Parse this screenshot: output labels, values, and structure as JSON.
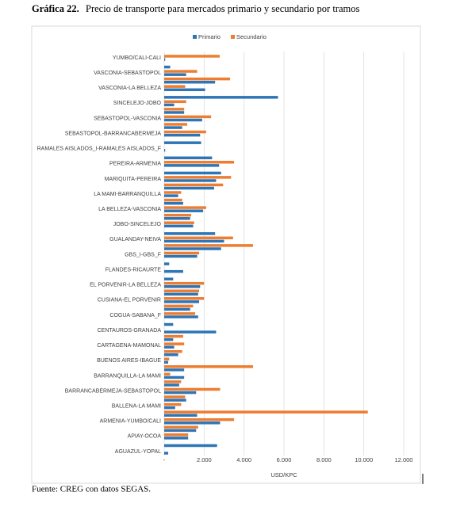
{
  "chart_data": {
    "type": "hbar",
    "title_number": "Gráfica 22.",
    "title": "Precio de transporte para mercados primario y secundario por tramos",
    "source": "Fuente: CREG con datos SEGAS.",
    "x_label": "USD/KPC",
    "categories": [
      "YUMBO/CALI-CALI",
      null,
      "VASCONIA-SEBASTOPOL",
      null,
      "VASCONIA-LA BELLEZA",
      null,
      "SINCELEJO-JOBO",
      null,
      "SEBASTOPOL-VASCONIA",
      null,
      "SEBASTOPOL-BARRANCABERMEJA",
      null,
      "RAMALES AISLADOS_I-RAMALES AISLADOS_F",
      null,
      "PEREIRA-ARMENIA",
      null,
      "MARIQUITA-PEREIRA",
      null,
      "LA MAMI-BARRANQUILLA",
      null,
      "LA BELLEZA-VASCONIA",
      null,
      "JOBO-SINCELEJO",
      null,
      "GUALANDAY-NEIVA",
      null,
      "GBS_I-GBS_F",
      null,
      "FLANDES-RICAURTE",
      null,
      "EL PORVENIR-LA BELLEZA",
      null,
      "CUSIANA-EL PORVENIR",
      null,
      "COGUA-SABANA_F",
      null,
      "CENTAUROS-GRANADA",
      null,
      "CARTAGENA-MAMONAL",
      null,
      "BUENOS AIRES-IBAGUE",
      null,
      "BARRANQUILLA-LA MAMI",
      null,
      "BARRANCABERMEJA-SEBASTOPOL",
      null,
      "BALLENA-LA MAMI",
      null,
      "ARMENIA-YUMBO/CALI",
      null,
      "APIAY-OCOA",
      null,
      "AGUAZUL-YOPAL"
    ],
    "series": [
      {
        "name": "Primario",
        "color": "#2e75b6",
        "values": [
          50,
          300,
          1100,
          2550,
          2050,
          5700,
          500,
          1000,
          1900,
          900,
          1800,
          1850,
          50,
          2400,
          2750,
          2850,
          2600,
          2500,
          700,
          950,
          1950,
          1300,
          1450,
          2550,
          3000,
          2850,
          1650,
          250,
          950,
          450,
          1800,
          1700,
          1750,
          1300,
          1700,
          450,
          2600,
          450,
          500,
          700,
          200,
          1000,
          1000,
          750,
          1600,
          1100,
          550,
          1650,
          2800,
          1600,
          1200,
          2650,
          200
        ]
      },
      {
        "name": "Secundario",
        "color": "#ed7d31",
        "values": [
          2780,
          0,
          1650,
          3300,
          1050,
          0,
          1100,
          1000,
          2350,
          1150,
          2100,
          0,
          0,
          0,
          3500,
          0,
          3350,
          2950,
          850,
          900,
          2100,
          1350,
          1500,
          0,
          3450,
          4450,
          1750,
          0,
          0,
          0,
          2000,
          1750,
          2000,
          1450,
          1550,
          0,
          0,
          950,
          1000,
          900,
          250,
          4450,
          300,
          850,
          2800,
          1050,
          850,
          10200,
          3500,
          1700,
          1200,
          0,
          0
        ]
      }
    ],
    "xlim": [
      0,
      12000
    ],
    "xticks": [
      {
        "value": 0,
        "label": "-"
      },
      {
        "value": 2000,
        "label": "2.000"
      },
      {
        "value": 4000,
        "label": "4.000"
      },
      {
        "value": 6000,
        "label": "6.000"
      },
      {
        "value": 8000,
        "label": "8.000"
      },
      {
        "value": 10000,
        "label": "10.000"
      },
      {
        "value": 12000,
        "label": "12.000"
      }
    ],
    "grid": true,
    "legend": "top"
  }
}
